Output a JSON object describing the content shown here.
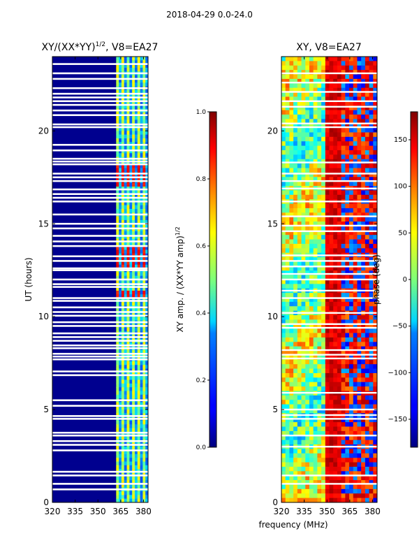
{
  "figure": {
    "suptitle": "2018-04-29 0.0-24.0",
    "xlabel": "frequency (MHz)"
  },
  "chart_data": [
    {
      "type": "heatmap",
      "title_text": "XY/(XX*YY)",
      "title_exp": "1/2",
      "title_suffix": ", V8=EA27",
      "xlabel": "",
      "ylabel": "UT (hours)",
      "xlim": [
        320,
        383
      ],
      "ylim": [
        0,
        24
      ],
      "xticks": [
        320,
        335,
        350,
        365,
        380
      ],
      "yticks": [
        0,
        5,
        10,
        15,
        20
      ],
      "quantity": "normalized XY amplitude",
      "colormap": "jet",
      "colorbar": {
        "label_text": "XY amp. / (XX*YY amp)",
        "label_exp": "1/2",
        "range": [
          0.0,
          1.0
        ],
        "ticks": [
          "0.0",
          "0.2",
          "0.4",
          "0.6",
          "0.8",
          "1.0"
        ]
      },
      "data_band_start_mhz": 362,
      "flagged_times_ut": [
        0.7,
        1.0,
        1.45,
        1.65,
        2.8,
        3.1,
        3.3,
        3.6,
        3.75,
        4.5,
        4.65,
        5.2,
        5.5,
        6.85,
        7.05,
        7.7,
        7.85,
        8.0,
        8.3,
        8.45,
        8.7,
        8.9,
        9.1,
        9.5,
        9.7,
        10.05,
        10.25,
        10.5,
        10.85,
        11.0,
        11.6,
        11.75,
        12.0,
        12.5,
        12.6,
        13.0,
        13.25,
        13.8,
        14.05,
        14.35,
        14.75,
        15.0,
        15.5,
        16.2,
        16.4,
        16.6,
        16.85,
        17.3,
        17.5,
        17.7,
        18.2,
        18.35,
        18.5,
        18.95,
        19.25,
        20.2,
        20.35,
        20.85,
        21.1,
        21.4,
        21.6,
        21.8,
        22.0,
        22.3,
        22.8,
        23.1,
        23.6
      ],
      "hot_bands_ut": [
        [
          11.0,
          11.4
        ],
        [
          12.6,
          13.1
        ],
        [
          13.3,
          13.8
        ],
        [
          17.0,
          18.1
        ]
      ],
      "hot_channels_mhz": [
        364.5,
        368.5,
        372.5,
        376.5,
        380.5
      ]
    },
    {
      "type": "heatmap",
      "title": "XY, V8=EA27",
      "xlabel": "",
      "ylabel": "",
      "xlim": [
        320,
        383
      ],
      "ylim": [
        0,
        24
      ],
      "xticks": [
        320,
        335,
        350,
        365,
        380
      ],
      "yticks": [
        0,
        5,
        10,
        15,
        20
      ],
      "quantity": "XY phase",
      "colormap": "jet",
      "colorbar": {
        "label": "phase (deg)",
        "range": [
          -180,
          180
        ],
        "ticks": [
          "−150",
          "−100",
          "−50",
          "0",
          "50",
          "100",
          "150"
        ]
      },
      "flagged_times_ut": [
        1.0,
        1.45,
        3.0,
        3.6,
        4.5,
        4.7,
        5.0,
        5.9,
        7.75,
        7.95,
        8.2,
        9.4,
        9.6,
        10.2,
        11.0,
        11.4,
        12.0,
        12.3,
        12.7,
        13.0,
        13.3,
        14.6,
        14.9,
        15.4,
        16.2,
        16.9,
        17.3,
        17.7,
        18.3,
        20.2,
        20.4,
        21.3,
        21.6,
        22.1,
        22.6,
        23.1
      ]
    }
  ]
}
